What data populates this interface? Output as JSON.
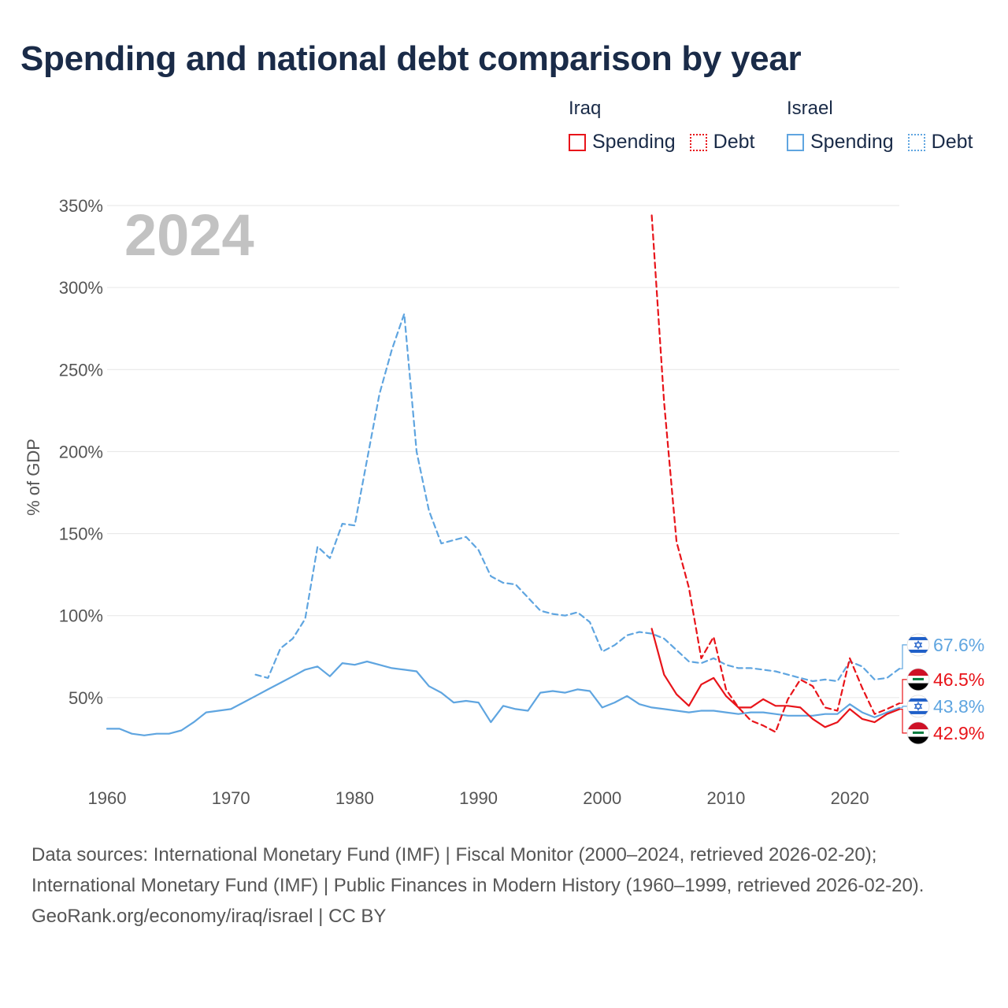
{
  "title": "Spending and national debt comparison by year",
  "legend": {
    "groups": [
      {
        "name": "Iraq",
        "color": "#e8141a",
        "items": [
          {
            "label": "Spending",
            "style": "solid"
          },
          {
            "label": "Debt",
            "style": "dotted"
          }
        ]
      },
      {
        "name": "Israel",
        "color": "#5fa5e0",
        "items": [
          {
            "label": "Spending",
            "style": "solid"
          },
          {
            "label": "Debt",
            "style": "dotted"
          }
        ]
      }
    ]
  },
  "chart_data": {
    "type": "line",
    "ylabel": "% of GDP",
    "xlabel": "",
    "xlim": [
      1960,
      2024
    ],
    "ylim": [
      0,
      350
    ],
    "y_ticks": [
      50,
      100,
      150,
      200,
      250,
      300,
      350
    ],
    "y_tick_labels": [
      "50%",
      "100%",
      "150%",
      "200%",
      "250%",
      "300%",
      "350%"
    ],
    "x_ticks": [
      1960,
      1970,
      1980,
      1990,
      2000,
      2010,
      2020
    ],
    "x_tick_labels": [
      "1960",
      "1970",
      "1980",
      "1990",
      "2000",
      "2010",
      "2020"
    ],
    "year_watermark": "2024",
    "grid": true,
    "series": [
      {
        "name": "Israel Debt",
        "country": "Israel",
        "metric": "Debt",
        "color": "#5fa5e0",
        "style": "dashed",
        "x": [
          1972,
          1973,
          1974,
          1975,
          1976,
          1977,
          1978,
          1979,
          1980,
          1981,
          1982,
          1983,
          1984,
          1985,
          1986,
          1987,
          1988,
          1989,
          1990,
          1991,
          1992,
          1993,
          1994,
          1995,
          1996,
          1997,
          1998,
          1999,
          2000,
          2001,
          2002,
          2003,
          2004,
          2005,
          2006,
          2007,
          2008,
          2009,
          2010,
          2011,
          2012,
          2013,
          2014,
          2015,
          2016,
          2017,
          2018,
          2019,
          2020,
          2021,
          2022,
          2023,
          2024
        ],
        "values": [
          64,
          62,
          80,
          86,
          98,
          142,
          135,
          156,
          155,
          195,
          235,
          262,
          284,
          200,
          164,
          144,
          146,
          148,
          140,
          124,
          120,
          119,
          111,
          103,
          101,
          100,
          102,
          96,
          78,
          82,
          88,
          90,
          89,
          86,
          79,
          72,
          71,
          74,
          70,
          68,
          68,
          67,
          66,
          64,
          62,
          60,
          61,
          60,
          72,
          69,
          61,
          62,
          67.6
        ]
      },
      {
        "name": "Israel Spending",
        "country": "Israel",
        "metric": "Spending",
        "color": "#5fa5e0",
        "style": "solid",
        "x": [
          1960,
          1961,
          1962,
          1963,
          1964,
          1965,
          1966,
          1967,
          1968,
          1969,
          1970,
          1971,
          1972,
          1973,
          1974,
          1975,
          1976,
          1977,
          1978,
          1979,
          1980,
          1981,
          1982,
          1983,
          1984,
          1985,
          1986,
          1987,
          1988,
          1989,
          1990,
          1991,
          1992,
          1993,
          1994,
          1995,
          1996,
          1997,
          1998,
          1999,
          2000,
          2001,
          2002,
          2003,
          2004,
          2005,
          2006,
          2007,
          2008,
          2009,
          2010,
          2011,
          2012,
          2013,
          2014,
          2015,
          2016,
          2017,
          2018,
          2019,
          2020,
          2021,
          2022,
          2023,
          2024
        ],
        "values": [
          31,
          31,
          28,
          27,
          28,
          28,
          30,
          35,
          41,
          42,
          43,
          47,
          51,
          55,
          59,
          63,
          67,
          69,
          63,
          71,
          70,
          72,
          70,
          68,
          67,
          66,
          57,
          53,
          47,
          48,
          47,
          35,
          45,
          43,
          42,
          53,
          54,
          53,
          55,
          54,
          44,
          47,
          51,
          46,
          44,
          43,
          42,
          41,
          42,
          42,
          41,
          40,
          41,
          41,
          40,
          39,
          39,
          39,
          40,
          40,
          46,
          41,
          38,
          41,
          43.8
        ]
      },
      {
        "name": "Iraq Debt",
        "country": "Iraq",
        "metric": "Debt",
        "color": "#e8141a",
        "style": "dashed",
        "x": [
          2004,
          2005,
          2006,
          2007,
          2008,
          2009,
          2010,
          2011,
          2012,
          2013,
          2014,
          2015,
          2016,
          2017,
          2018,
          2019,
          2020,
          2021,
          2022,
          2023,
          2024
        ],
        "values": [
          344,
          230,
          145,
          117,
          74,
          87,
          55,
          44,
          36,
          33,
          29,
          49,
          61,
          57,
          44,
          42,
          74,
          56,
          40,
          43,
          46.5
        ]
      },
      {
        "name": "Iraq Spending",
        "country": "Iraq",
        "metric": "Spending",
        "color": "#e8141a",
        "style": "solid",
        "x": [
          2004,
          2005,
          2006,
          2007,
          2008,
          2009,
          2010,
          2011,
          2012,
          2013,
          2014,
          2015,
          2016,
          2017,
          2018,
          2019,
          2020,
          2021,
          2022,
          2023,
          2024
        ],
        "values": [
          92,
          64,
          52,
          45,
          58,
          62,
          51,
          44,
          44,
          49,
          45,
          45,
          44,
          37,
          32,
          35,
          43,
          37,
          35,
          40,
          42.9
        ]
      }
    ],
    "end_labels": [
      {
        "series": "Israel Debt",
        "text": "67.6%",
        "flag": "israel-flag",
        "color": "#5fa5e0"
      },
      {
        "series": "Iraq Debt",
        "text": "46.5%",
        "flag": "iraq-flag",
        "color": "#e8141a"
      },
      {
        "series": "Israel Spending",
        "text": "43.8%",
        "flag": "israel-flag",
        "color": "#5fa5e0"
      },
      {
        "series": "Iraq Spending",
        "text": "42.9%",
        "flag": "iraq-flag",
        "color": "#e8141a"
      }
    ]
  },
  "footer": {
    "sources": "Data sources: International Monetary Fund (IMF) | Fiscal Monitor (2000–2024, retrieved 2026-02-20); International Monetary Fund (IMF) | Public Finances in Modern History (1960–1999, retrieved 2026-02-20).",
    "credit": "GeoRank.org/economy/iraq/israel | CC BY"
  }
}
